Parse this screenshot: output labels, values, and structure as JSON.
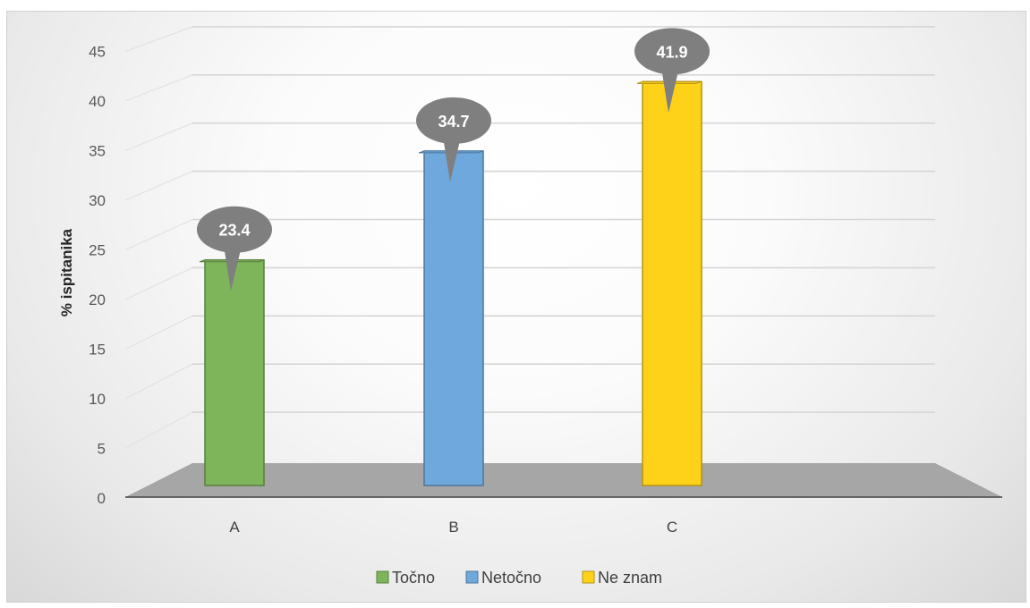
{
  "chart_data": {
    "type": "bar",
    "categories": [
      "A",
      "B",
      "C"
    ],
    "series": [
      {
        "name": "Točno",
        "color": "#7fb55a",
        "values": [
          23.4,
          null,
          null
        ]
      },
      {
        "name": "Netočno",
        "color": "#6fa8dc",
        "values": [
          null,
          34.7,
          null
        ]
      },
      {
        "name": "Ne znam",
        "color": "#ffd21a",
        "values": [
          null,
          null,
          41.9
        ]
      }
    ],
    "ylabel": "% ispitanika",
    "ylim": [
      0,
      45
    ],
    "yticks": [
      0,
      5,
      10,
      15,
      20,
      25,
      30,
      35,
      40,
      45
    ],
    "grid": true,
    "legend": "bottom",
    "style": "3d-column"
  }
}
